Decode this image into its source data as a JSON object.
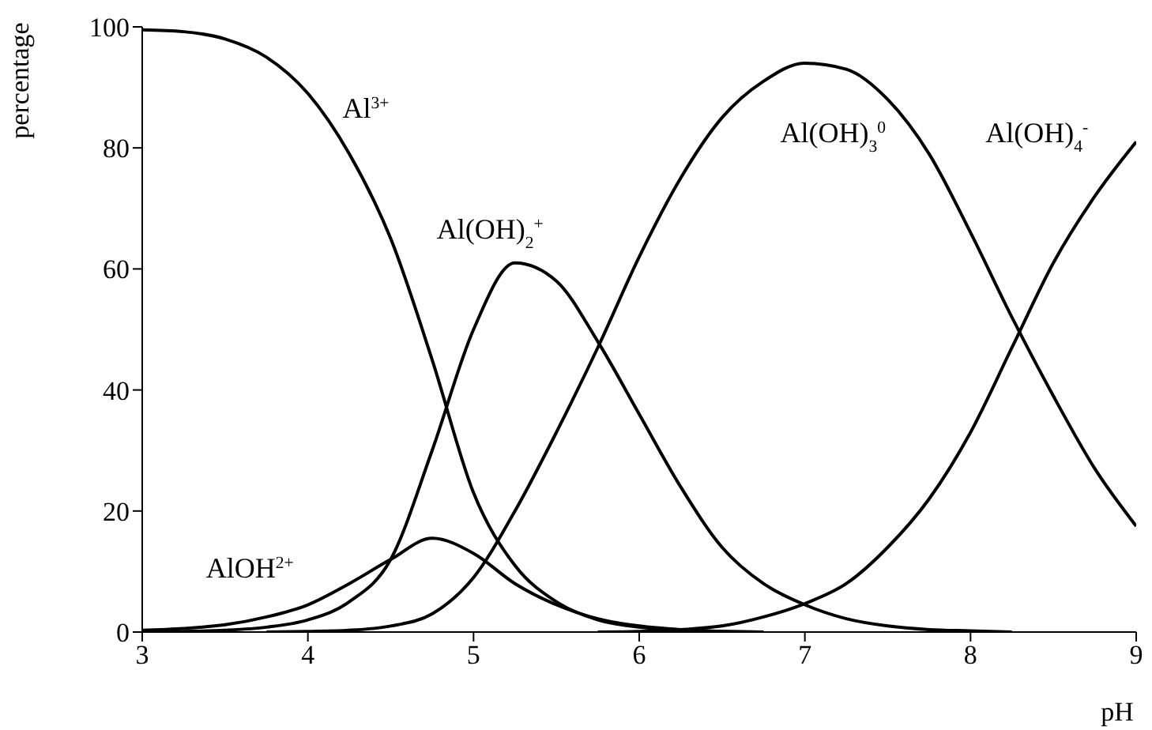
{
  "chart_data": {
    "type": "line",
    "xlabel": "pH",
    "ylabel": "percentage",
    "x": [
      3,
      3.25,
      3.5,
      3.75,
      4,
      4.25,
      4.5,
      4.75,
      5,
      5.25,
      5.5,
      5.75,
      6,
      6.25,
      6.5,
      6.75,
      7,
      7.25,
      7.5,
      7.75,
      8,
      8.25,
      8.5,
      8.75,
      9
    ],
    "series": [
      {
        "name": "Al$^{3+}$",
        "color": "#000000",
        "values": [
          99.5,
          99.2,
          98,
          95,
          89,
          79,
          65,
          45,
          23,
          11,
          5,
          2,
          0.8,
          0.3,
          0.1,
          0,
          null,
          null,
          null,
          null,
          null,
          null,
          null,
          null,
          null
        ]
      },
      {
        "name": "AlOH$^{2+}$",
        "color": "#000000",
        "values": [
          0.3,
          0.6,
          1.2,
          2.5,
          4.5,
          8,
          12,
          15.5,
          13,
          8,
          4.5,
          2.2,
          1,
          0.4,
          0.1,
          0,
          null,
          null,
          null,
          null,
          null,
          null,
          null,
          null,
          null
        ]
      },
      {
        "name": "Al(OH)$_{2}$$^{+}$",
        "color": "#000000",
        "values": [
          0,
          0.1,
          0.3,
          0.8,
          2,
          5,
          12,
          30,
          50,
          61,
          58,
          48,
          36,
          24,
          14,
          8,
          4.5,
          2.2,
          1,
          0.4,
          0.2,
          0,
          null,
          null,
          null
        ]
      },
      {
        "name": "Al(OH)$_{3}$$^{0}$",
        "color": "#000000",
        "values": [
          null,
          null,
          null,
          0,
          0.1,
          0.3,
          1,
          3,
          9,
          20,
          33,
          47,
          62,
          75,
          85,
          91,
          94,
          93,
          88,
          79,
          66,
          52,
          39,
          27,
          17.5
        ]
      },
      {
        "name": "Al(OH)$_{4}$$^{-}$",
        "color": "#000000",
        "values": [
          null,
          null,
          null,
          null,
          null,
          null,
          null,
          null,
          null,
          null,
          null,
          0,
          0.1,
          0.4,
          1,
          2.5,
          4.7,
          8,
          14,
          22,
          33,
          47,
          61,
          72,
          81
        ]
      }
    ],
    "xlim": [
      3,
      9
    ],
    "xticks": [
      3,
      4,
      5,
      6,
      7,
      8,
      9
    ],
    "ylim": [
      0,
      100
    ],
    "yticks": [
      0,
      20,
      40,
      60,
      80,
      100
    ],
    "grid": false,
    "legend": false,
    "marker": "none",
    "line_style": "solid"
  }
}
